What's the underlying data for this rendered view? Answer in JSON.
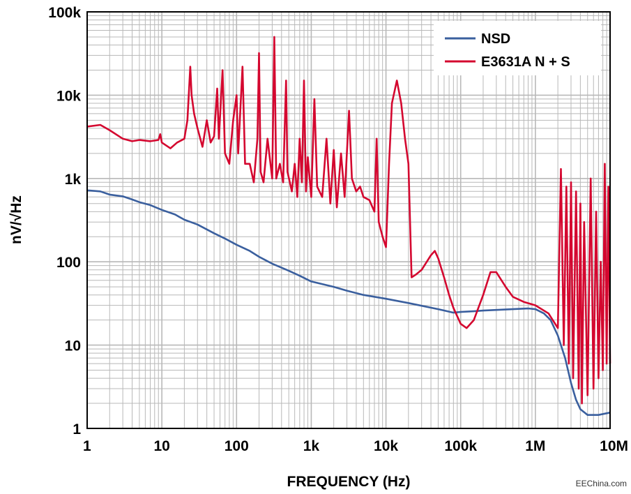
{
  "chart_data": {
    "type": "line",
    "xlabel": "FREQUENCY (Hz)",
    "ylabel": "nV/√Hz",
    "xscale": "log",
    "yscale": "log",
    "xlim": [
      1,
      10000000
    ],
    "ylim": [
      1,
      100000
    ],
    "grid": true,
    "legend_position": "top-right",
    "x_tick_labels": [
      "1",
      "10",
      "100",
      "1k",
      "10k",
      "100k",
      "1M",
      "10M"
    ],
    "y_tick_labels": [
      "1",
      "10",
      "100",
      "1k",
      "10k",
      "100k"
    ],
    "series": [
      {
        "name": "NSD",
        "color": "#3a5f9e",
        "points": [
          [
            1,
            720
          ],
          [
            1.5,
            700
          ],
          [
            2,
            640
          ],
          [
            3,
            610
          ],
          [
            4,
            560
          ],
          [
            5,
            520
          ],
          [
            7,
            480
          ],
          [
            10,
            420
          ],
          [
            15,
            370
          ],
          [
            20,
            320
          ],
          [
            30,
            280
          ],
          [
            50,
            220
          ],
          [
            70,
            190
          ],
          [
            100,
            160
          ],
          [
            150,
            135
          ],
          [
            200,
            115
          ],
          [
            300,
            95
          ],
          [
            500,
            78
          ],
          [
            700,
            68
          ],
          [
            1000,
            58
          ],
          [
            2000,
            50
          ],
          [
            3000,
            45
          ],
          [
            5000,
            40
          ],
          [
            10000,
            36
          ],
          [
            20000,
            32
          ],
          [
            50000,
            27
          ],
          [
            80000,
            24.5
          ],
          [
            100000,
            25
          ],
          [
            150000,
            25.5
          ],
          [
            200000,
            26
          ],
          [
            500000,
            27
          ],
          [
            800000,
            27.5
          ],
          [
            1000000,
            27
          ],
          [
            1300000,
            24
          ],
          [
            1600000,
            20
          ],
          [
            2000000,
            13
          ],
          [
            2500000,
            7
          ],
          [
            3000000,
            3.5
          ],
          [
            3500000,
            2.2
          ],
          [
            4000000,
            1.7
          ],
          [
            5000000,
            1.45
          ],
          [
            7000000,
            1.45
          ],
          [
            10000000,
            1.55
          ]
        ]
      },
      {
        "name": "E3631A N + S",
        "color": "#d4072f",
        "points": [
          [
            1,
            4200
          ],
          [
            1.5,
            4400
          ],
          [
            2,
            3800
          ],
          [
            3,
            3000
          ],
          [
            4,
            2800
          ],
          [
            5,
            2900
          ],
          [
            7,
            2800
          ],
          [
            9,
            2900
          ],
          [
            9.5,
            3400
          ],
          [
            10,
            2700
          ],
          [
            13,
            2300
          ],
          [
            16,
            2700
          ],
          [
            20,
            3000
          ],
          [
            22,
            5000
          ],
          [
            24,
            22000
          ],
          [
            25,
            10000
          ],
          [
            27,
            6000
          ],
          [
            30,
            4000
          ],
          [
            35,
            2400
          ],
          [
            40,
            5000
          ],
          [
            45,
            2700
          ],
          [
            50,
            3200
          ],
          [
            55,
            12000
          ],
          [
            58,
            3000
          ],
          [
            65,
            20000
          ],
          [
            70,
            2000
          ],
          [
            80,
            1500
          ],
          [
            90,
            5000
          ],
          [
            100,
            10000
          ],
          [
            105,
            2000
          ],
          [
            120,
            22000
          ],
          [
            130,
            1500
          ],
          [
            150,
            1500
          ],
          [
            170,
            900
          ],
          [
            190,
            3000
          ],
          [
            200,
            32000
          ],
          [
            210,
            1200
          ],
          [
            230,
            900
          ],
          [
            260,
            3000
          ],
          [
            300,
            1000
          ],
          [
            320,
            50000
          ],
          [
            340,
            1000
          ],
          [
            380,
            1500
          ],
          [
            420,
            900
          ],
          [
            460,
            15000
          ],
          [
            480,
            1200
          ],
          [
            550,
            700
          ],
          [
            600,
            1500
          ],
          [
            650,
            600
          ],
          [
            700,
            3000
          ],
          [
            750,
            900
          ],
          [
            800,
            15000
          ],
          [
            850,
            700
          ],
          [
            900,
            1800
          ],
          [
            1000,
            600
          ],
          [
            1100,
            9000
          ],
          [
            1200,
            800
          ],
          [
            1400,
            600
          ],
          [
            1600,
            3000
          ],
          [
            1800,
            500
          ],
          [
            2000,
            2200
          ],
          [
            2200,
            450
          ],
          [
            2500,
            2000
          ],
          [
            2800,
            600
          ],
          [
            3200,
            6500
          ],
          [
            3500,
            1000
          ],
          [
            4000,
            700
          ],
          [
            4500,
            800
          ],
          [
            5000,
            600
          ],
          [
            6000,
            550
          ],
          [
            7000,
            400
          ],
          [
            7500,
            3000
          ],
          [
            8000,
            300
          ],
          [
            9000,
            200
          ],
          [
            10000,
            150
          ],
          [
            11000,
            1500
          ],
          [
            12000,
            8000
          ],
          [
            14000,
            15000
          ],
          [
            16000,
            8000
          ],
          [
            18000,
            3000
          ],
          [
            20000,
            1500
          ],
          [
            22000,
            65
          ],
          [
            25000,
            70
          ],
          [
            30000,
            80
          ],
          [
            40000,
            120
          ],
          [
            45000,
            135
          ],
          [
            50000,
            110
          ],
          [
            60000,
            65
          ],
          [
            70000,
            40
          ],
          [
            80000,
            28
          ],
          [
            100000,
            18
          ],
          [
            120000,
            16
          ],
          [
            150000,
            20
          ],
          [
            200000,
            40
          ],
          [
            250000,
            75
          ],
          [
            300000,
            75
          ],
          [
            400000,
            50
          ],
          [
            500000,
            38
          ],
          [
            700000,
            33
          ],
          [
            1000000,
            30
          ],
          [
            1500000,
            24
          ],
          [
            2000000,
            16
          ],
          [
            2200000,
            1300
          ],
          [
            2400000,
            10
          ],
          [
            2600000,
            800
          ],
          [
            2800000,
            6
          ],
          [
            3000000,
            900
          ],
          [
            3200000,
            4
          ],
          [
            3500000,
            700
          ],
          [
            3800000,
            3
          ],
          [
            4000000,
            500
          ],
          [
            4200000,
            2
          ],
          [
            4500000,
            300
          ],
          [
            5000000,
            2.5
          ],
          [
            5500000,
            1000
          ],
          [
            6000000,
            3
          ],
          [
            6500000,
            400
          ],
          [
            7000000,
            4
          ],
          [
            7500000,
            100
          ],
          [
            8000000,
            5
          ],
          [
            8500000,
            1500
          ],
          [
            9000000,
            6
          ],
          [
            9500000,
            800
          ],
          [
            10000000,
            6
          ]
        ]
      }
    ]
  },
  "watermark": "EEChina.com"
}
